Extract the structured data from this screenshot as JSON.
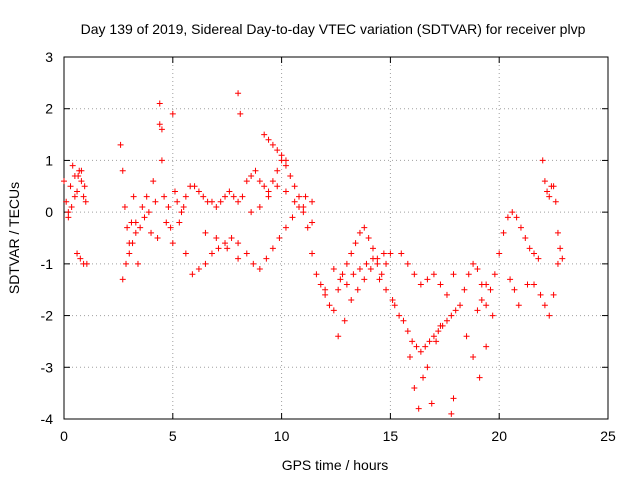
{
  "chart_data": {
    "type": "scatter",
    "title": "Day 139 of 2019, Sidereal Day-to-day VTEC variation (SDTVAR) for receiver plvp",
    "xlabel": "GPS time / hours",
    "ylabel": "SDTVAR / TECUs",
    "xlim": [
      0,
      25
    ],
    "ylim": [
      -4,
      3
    ],
    "xticks": [
      "0",
      "5",
      "10",
      "15",
      "20",
      "25"
    ],
    "yticks": [
      "-4",
      "-3",
      "-2",
      "-1",
      "0",
      "1",
      "2",
      "3"
    ],
    "grid": true,
    "marker": "+",
    "series": [
      {
        "name": "plvp",
        "color": "#ff0000",
        "x": [
          0.0,
          0.1,
          0.2,
          0.3,
          0.4,
          0.5,
          0.6,
          0.7,
          0.8,
          0.9,
          1.0,
          0.2,
          0.35,
          0.5,
          0.65,
          0.8,
          0.95,
          0.6,
          0.75,
          0.9,
          1.05,
          2.6,
          2.7,
          2.8,
          2.9,
          3.0,
          3.1,
          3.2,
          3.3,
          3.4,
          2.7,
          2.85,
          3.0,
          3.15,
          3.3,
          3.5,
          3.6,
          3.7,
          3.8,
          3.9,
          4.0,
          4.1,
          4.2,
          4.3,
          4.4,
          4.5,
          4.6,
          4.7,
          4.8,
          4.9,
          5.0,
          5.1,
          5.2,
          5.3,
          5.4,
          4.4,
          4.5,
          5.0,
          5.5,
          5.6,
          5.8,
          6.0,
          6.2,
          6.4,
          6.6,
          6.8,
          7.0,
          7.2,
          7.4,
          7.6,
          7.8,
          8.0,
          5.6,
          5.9,
          6.2,
          6.5,
          6.8,
          7.1,
          7.4,
          7.7,
          8.0,
          6.5,
          7.0,
          7.5,
          8.0,
          8.0,
          8.1,
          8.2,
          8.4,
          8.6,
          8.8,
          9.0,
          9.2,
          9.4,
          9.6,
          9.8,
          10.0,
          10.2,
          10.4,
          10.6,
          10.8,
          11.0,
          11.2,
          11.4,
          11.6,
          11.8,
          12.0,
          8.4,
          8.7,
          9.0,
          9.3,
          9.6,
          9.9,
          10.2,
          10.5,
          10.8,
          11.1,
          11.4,
          8.6,
          9.0,
          9.4,
          9.8,
          10.2,
          10.6,
          11.0,
          11.4,
          9.2,
          9.4,
          9.6,
          9.8,
          10.0,
          10.2,
          12.0,
          12.2,
          12.4,
          12.6,
          12.8,
          13.0,
          13.2,
          13.4,
          13.6,
          13.8,
          14.0,
          14.2,
          14.4,
          14.6,
          14.8,
          15.0,
          12.6,
          12.9,
          13.2,
          13.5,
          13.8,
          14.1,
          14.4,
          14.7,
          12.4,
          12.7,
          13.0,
          13.3,
          13.6,
          13.9,
          14.2,
          14.5,
          14.8,
          15.1,
          15.2,
          15.4,
          15.6,
          15.8,
          16.0,
          16.2,
          16.4,
          16.6,
          16.8,
          17.0,
          17.2,
          17.4,
          17.6,
          17.8,
          18.0,
          15.5,
          15.8,
          16.1,
          16.4,
          16.7,
          17.0,
          17.3,
          17.6,
          17.9,
          15.9,
          16.1,
          16.3,
          16.5,
          16.7,
          16.9,
          17.1,
          17.3,
          17.8,
          17.9,
          18.2,
          18.4,
          18.6,
          18.8,
          19.0,
          19.2,
          19.4,
          19.6,
          19.8,
          18.5,
          18.8,
          19.1,
          19.4,
          19.7,
          19.0,
          19.2,
          19.4,
          20.0,
          20.2,
          20.4,
          20.6,
          20.8,
          21.0,
          21.2,
          21.4,
          21.6,
          21.8,
          20.5,
          20.7,
          20.9,
          21.3,
          21.6,
          21.9,
          22.0,
          22.1,
          22.2,
          22.3,
          22.4,
          22.5,
          22.6,
          22.7,
          22.8,
          22.9,
          22.1,
          22.3,
          22.5,
          22.7
        ],
        "y": [
          0.6,
          0.2,
          0.0,
          0.5,
          0.9,
          0.7,
          0.4,
          0.8,
          0.6,
          0.3,
          0.2,
          -0.1,
          0.1,
          0.3,
          0.7,
          0.8,
          0.5,
          -0.8,
          -0.9,
          -1.0,
          -1.0,
          1.3,
          0.8,
          0.1,
          -0.3,
          -0.6,
          -0.2,
          0.3,
          -0.4,
          -1.0,
          -1.3,
          -1.0,
          -0.8,
          -0.6,
          -0.2,
          -0.3,
          0.1,
          -0.1,
          0.3,
          0.0,
          -0.4,
          0.6,
          0.2,
          -0.5,
          1.7,
          1.0,
          0.3,
          -0.2,
          0.1,
          -0.3,
          -0.6,
          0.4,
          0.2,
          -0.2,
          0.0,
          2.1,
          1.6,
          1.9,
          0.1,
          0.3,
          0.5,
          0.5,
          0.4,
          0.3,
          0.2,
          0.2,
          0.1,
          0.2,
          0.3,
          0.4,
          0.3,
          0.2,
          -0.8,
          -1.2,
          -1.1,
          -1.0,
          -0.8,
          -0.7,
          -0.6,
          -0.5,
          -0.6,
          -0.4,
          -0.5,
          -0.7,
          -0.9,
          2.3,
          1.9,
          0.3,
          0.6,
          0.7,
          0.8,
          0.6,
          0.5,
          0.4,
          0.6,
          0.8,
          1.0,
          0.9,
          0.7,
          0.5,
          0.3,
          0.0,
          -0.3,
          -0.8,
          -1.2,
          -1.4,
          -1.5,
          -0.8,
          -1.0,
          -1.1,
          -0.9,
          -0.7,
          -0.5,
          -0.3,
          -0.1,
          0.1,
          0.3,
          0.2,
          0.0,
          0.1,
          0.3,
          0.5,
          0.4,
          0.2,
          0.1,
          -0.2,
          1.5,
          1.4,
          1.3,
          1.2,
          1.1,
          1.0,
          -1.6,
          -1.8,
          -1.9,
          -1.5,
          -1.2,
          -1.0,
          -0.8,
          -0.6,
          -0.4,
          -0.3,
          -0.5,
          -0.7,
          -1.0,
          -1.2,
          -1.0,
          -0.8,
          -2.4,
          -2.1,
          -1.7,
          -1.5,
          -1.3,
          -1.1,
          -0.9,
          -0.8,
          -1.1,
          -1.3,
          -1.4,
          -1.2,
          -1.1,
          -1.0,
          -0.9,
          -1.3,
          -1.5,
          -1.7,
          -1.8,
          -2.0,
          -2.1,
          -2.3,
          -2.5,
          -2.6,
          -2.7,
          -2.6,
          -2.5,
          -2.4,
          -2.3,
          -2.2,
          -2.1,
          -2.0,
          -1.9,
          -0.8,
          -1.0,
          -1.2,
          -1.4,
          -1.3,
          -1.2,
          -1.4,
          -1.6,
          -1.2,
          -2.8,
          -3.4,
          -3.8,
          -3.2,
          -3.0,
          -3.7,
          -2.5,
          -2.2,
          -3.9,
          -3.6,
          -1.8,
          -1.5,
          -1.2,
          -1.0,
          -1.1,
          -1.4,
          -1.8,
          -1.5,
          -1.2,
          -2.4,
          -2.8,
          -3.2,
          -2.6,
          -2.0,
          -1.9,
          -1.7,
          -1.4,
          -0.8,
          -0.4,
          -0.1,
          0.0,
          -0.1,
          -0.3,
          -0.5,
          -0.7,
          -0.8,
          -0.9,
          -1.3,
          -1.5,
          -1.8,
          -1.4,
          -1.4,
          -1.6,
          1.0,
          0.6,
          0.4,
          0.3,
          0.5,
          0.5,
          0.2,
          -0.4,
          -0.7,
          -0.9,
          -1.8,
          -2.0,
          -1.6,
          -1.0
        ]
      }
    ]
  }
}
